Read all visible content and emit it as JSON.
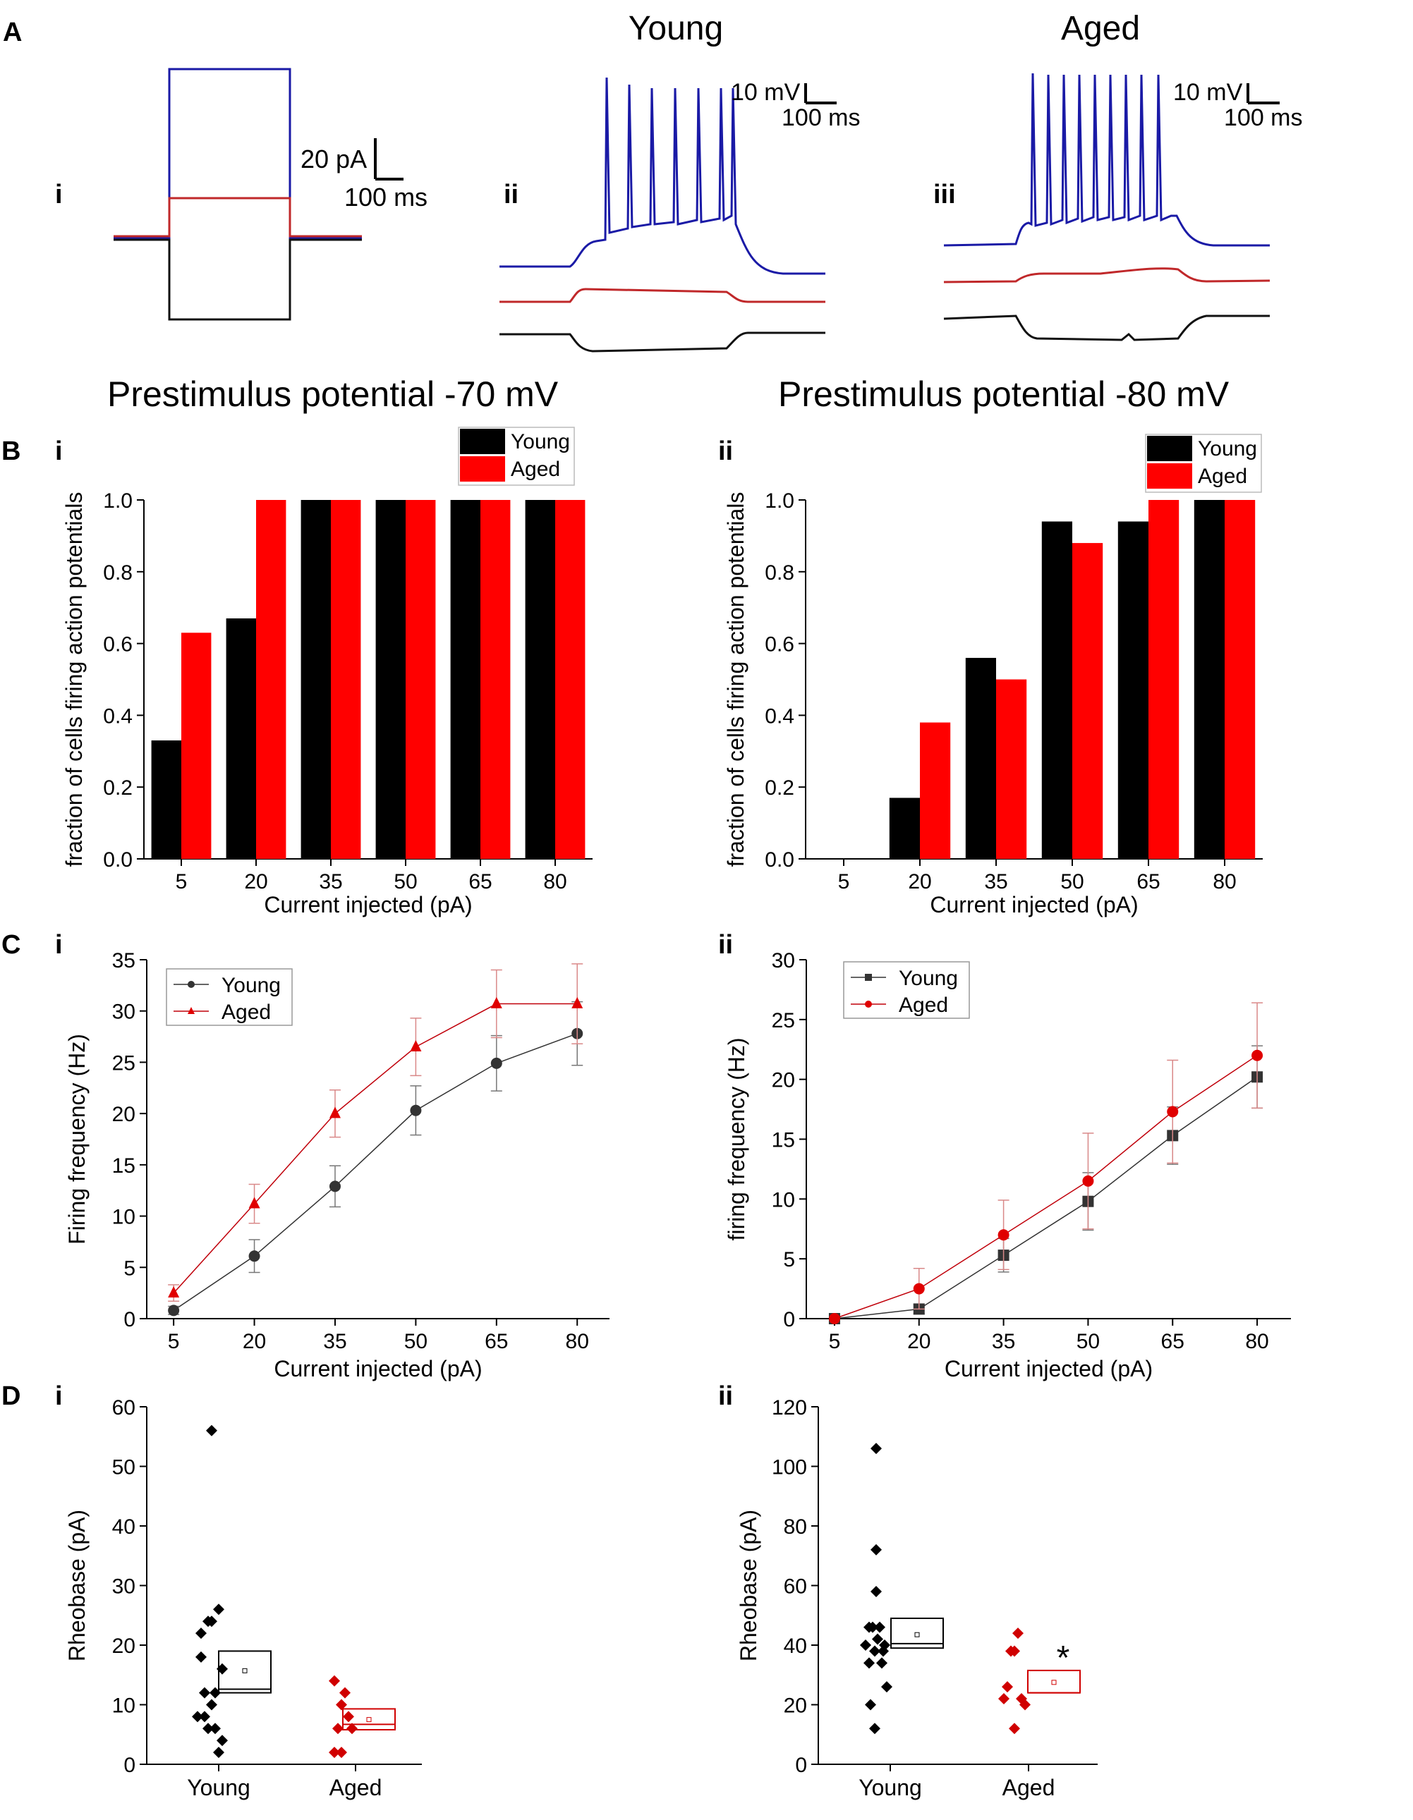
{
  "panel_labels": {
    "A": "A",
    "B": "B",
    "C": "C",
    "D": "D",
    "i": "i",
    "ii": "ii",
    "iii": "iii"
  },
  "headings": {
    "young": "Young",
    "aged": "Aged",
    "pre70": "Prestimulus potential -70 mV",
    "pre80": "Prestimulus potential -80 mV"
  },
  "scalebars": {
    "current": "20 pA",
    "time": "100 ms",
    "voltage": "10 mV"
  },
  "colors": {
    "young": "#000000",
    "aged": "#ff0000",
    "aged_line": "#c0000a",
    "trace_blue": "#1a1aa6",
    "trace_red": "#c0282a",
    "trace_black": "#111111"
  },
  "chart_data": [
    {
      "id": "Bi",
      "type": "bar",
      "title": "Prestimulus potential -70 mV",
      "xlabel": "Current injected (pA)",
      "ylabel": "fraction of cells firing action potentials",
      "categories": [
        "5",
        "20",
        "35",
        "50",
        "65",
        "80"
      ],
      "ylim": [
        0,
        1.0
      ],
      "yticks": [
        "0.0",
        "0.2",
        "0.4",
        "0.6",
        "0.8",
        "1.0"
      ],
      "legend": "top-right",
      "series": [
        {
          "name": "Young",
          "values": [
            0.33,
            0.67,
            1.0,
            1.0,
            1.0,
            1.0
          ]
        },
        {
          "name": "Aged",
          "values": [
            0.63,
            1.0,
            1.0,
            1.0,
            1.0,
            1.0
          ]
        }
      ]
    },
    {
      "id": "Bii",
      "type": "bar",
      "title": "Prestimulus potential -80 mV",
      "xlabel": "Current injected (pA)",
      "ylabel": "fraction of cells firing action potentials",
      "categories": [
        "5",
        "20",
        "35",
        "50",
        "65",
        "80"
      ],
      "ylim": [
        0,
        1.0
      ],
      "yticks": [
        "0.0",
        "0.2",
        "0.4",
        "0.6",
        "0.8",
        "1.0"
      ],
      "legend": "top-right",
      "series": [
        {
          "name": "Young",
          "values": [
            0,
            0.17,
            0.56,
            0.94,
            0.94,
            1.0
          ]
        },
        {
          "name": "Aged",
          "values": [
            0,
            0.38,
            0.5,
            0.88,
            1.0,
            1.0
          ]
        }
      ]
    },
    {
      "id": "Ci",
      "type": "line",
      "xlabel": "Current injected (pA)",
      "ylabel": "Firing frequency (Hz)",
      "x": [
        5,
        20,
        35,
        50,
        65,
        80
      ],
      "xticks": [
        "5",
        "20",
        "35",
        "50",
        "65",
        "80"
      ],
      "ylim": [
        0,
        35
      ],
      "yticks": [
        "0",
        "5",
        "10",
        "15",
        "20",
        "25",
        "30",
        "35"
      ],
      "legend": "top-left",
      "series": [
        {
          "name": "Young",
          "marker": "circle",
          "values": [
            0.8,
            6.1,
            12.9,
            20.3,
            24.9,
            27.8
          ],
          "err": [
            0.4,
            1.6,
            2.0,
            2.4,
            2.7,
            3.1
          ]
        },
        {
          "name": "Aged",
          "marker": "triangle",
          "values": [
            2.5,
            11.2,
            20.0,
            26.5,
            30.7,
            30.7
          ],
          "err": [
            0.8,
            1.9,
            2.3,
            2.8,
            3.3,
            3.9
          ]
        }
      ]
    },
    {
      "id": "Cii",
      "type": "line",
      "xlabel": "Current injected (pA)",
      "ylabel": "firing frequency (Hz)",
      "x": [
        5,
        20,
        35,
        50,
        65,
        80
      ],
      "xticks": [
        "5",
        "20",
        "35",
        "50",
        "65",
        "80"
      ],
      "ylim": [
        0,
        30
      ],
      "yticks": [
        "0",
        "5",
        "10",
        "15",
        "20",
        "25",
        "30"
      ],
      "legend": "top-left",
      "series": [
        {
          "name": "Young",
          "marker": "square",
          "values": [
            0,
            0.8,
            5.3,
            9.8,
            15.3,
            20.2
          ],
          "err": [
            0,
            0.4,
            1.4,
            2.4,
            2.4,
            2.6
          ]
        },
        {
          "name": "Aged",
          "marker": "circle",
          "values": [
            0,
            2.5,
            7.0,
            11.5,
            17.3,
            22.0
          ],
          "err": [
            0,
            1.7,
            2.9,
            4.0,
            4.3,
            4.4
          ]
        }
      ]
    },
    {
      "id": "Di",
      "type": "scatter",
      "ylabel": "Rheobase (pA)",
      "categories": [
        "Young",
        "Aged"
      ],
      "ylim": [
        0,
        60
      ],
      "yticks": [
        "0",
        "10",
        "20",
        "30",
        "40",
        "50",
        "60"
      ],
      "groups": [
        {
          "name": "Young",
          "points": [
            [
              -0.3,
              8
            ],
            [
              -0.25,
              18
            ],
            [
              -0.25,
              22
            ],
            [
              -0.2,
              8
            ],
            [
              -0.2,
              12
            ],
            [
              -0.15,
              24
            ],
            [
              -0.15,
              6
            ],
            [
              -0.1,
              56
            ],
            [
              -0.1,
              10
            ],
            [
              -0.1,
              24
            ],
            [
              -0.05,
              6
            ],
            [
              -0.05,
              12
            ],
            [
              0,
              26
            ],
            [
              0,
              2
            ],
            [
              0.05,
              4
            ],
            [
              0.05,
              16
            ]
          ],
          "box": {
            "q1": 12,
            "median": 12.6,
            "q3": 19,
            "mean": 15.7
          }
        },
        {
          "name": "Aged",
          "points": [
            [
              -0.3,
              2
            ],
            [
              -0.3,
              14
            ],
            [
              -0.25,
              6
            ],
            [
              -0.2,
              2
            ],
            [
              -0.2,
              10
            ],
            [
              -0.15,
              12
            ],
            [
              -0.1,
              8
            ],
            [
              -0.05,
              6
            ]
          ],
          "box": {
            "q1": 5.8,
            "median": 6.7,
            "q3": 9.3,
            "mean": 7.5
          }
        }
      ]
    },
    {
      "id": "Dii",
      "type": "scatter",
      "ylabel": "Rheobase (pA)",
      "categories": [
        "Young",
        "Aged"
      ],
      "ylim": [
        0,
        120
      ],
      "yticks": [
        "0",
        "20",
        "40",
        "60",
        "80",
        "100",
        "120"
      ],
      "significance": "*",
      "groups": [
        {
          "name": "Young",
          "points": [
            [
              -0.35,
              40
            ],
            [
              -0.3,
              46
            ],
            [
              -0.3,
              34
            ],
            [
              -0.28,
              20
            ],
            [
              -0.25,
              46
            ],
            [
              -0.22,
              12
            ],
            [
              -0.22,
              38
            ],
            [
              -0.2,
              58
            ],
            [
              -0.2,
              72
            ],
            [
              -0.2,
              106
            ],
            [
              -0.18,
              42
            ],
            [
              -0.15,
              46
            ],
            [
              -0.12,
              34
            ],
            [
              -0.1,
              38
            ],
            [
              -0.08,
              40
            ],
            [
              -0.05,
              26
            ]
          ],
          "box": {
            "q1": 39,
            "median": 40.5,
            "q3": 49,
            "mean": 43.5
          }
        },
        {
          "name": "Aged",
          "points": [
            [
              -0.35,
              22
            ],
            [
              -0.3,
              26
            ],
            [
              -0.25,
              38
            ],
            [
              -0.2,
              12
            ],
            [
              -0.2,
              38
            ],
            [
              -0.15,
              44
            ],
            [
              -0.1,
              22
            ],
            [
              -0.05,
              20
            ]
          ],
          "box": {
            "q1": 24,
            "median": 24,
            "q3": 31.5,
            "mean": 27.5
          }
        }
      ]
    }
  ]
}
